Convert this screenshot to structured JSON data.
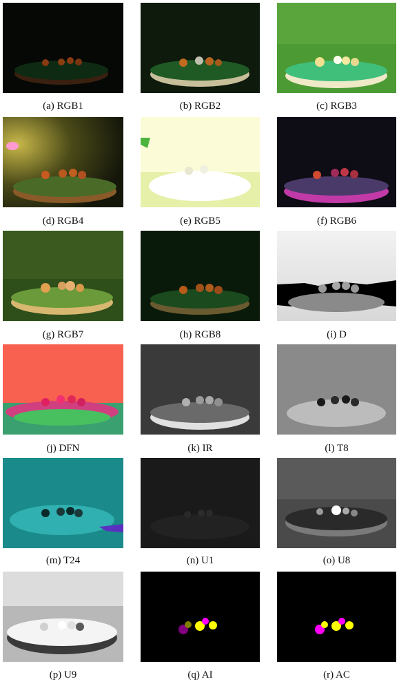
{
  "figure": {
    "panels": [
      {
        "id": "rgb1",
        "caption": "(a) RGB1"
      },
      {
        "id": "rgb2",
        "caption": "(b) RGB2"
      },
      {
        "id": "rgb3",
        "caption": "(c) RGB3"
      },
      {
        "id": "rgb4",
        "caption": "(d) RGB4"
      },
      {
        "id": "rgb5",
        "caption": "(e) RGB5"
      },
      {
        "id": "rgb6",
        "caption": "(f) RGB6"
      },
      {
        "id": "rgb7",
        "caption": "(g) RGB7"
      },
      {
        "id": "rgb8",
        "caption": "(h) RGB8"
      },
      {
        "id": "d",
        "caption": "(i) D"
      },
      {
        "id": "dfn",
        "caption": "(j) DFN"
      },
      {
        "id": "ir",
        "caption": "(k) IR"
      },
      {
        "id": "t8",
        "caption": "(l) T8"
      },
      {
        "id": "t24",
        "caption": "(m) T24"
      },
      {
        "id": "u1",
        "caption": "(n) U1"
      },
      {
        "id": "u8",
        "caption": "(o) U8"
      },
      {
        "id": "u9",
        "caption": "(p) U9"
      },
      {
        "id": "ai",
        "caption": "(q) AI"
      },
      {
        "id": "ac",
        "caption": "(r) AC"
      }
    ]
  }
}
